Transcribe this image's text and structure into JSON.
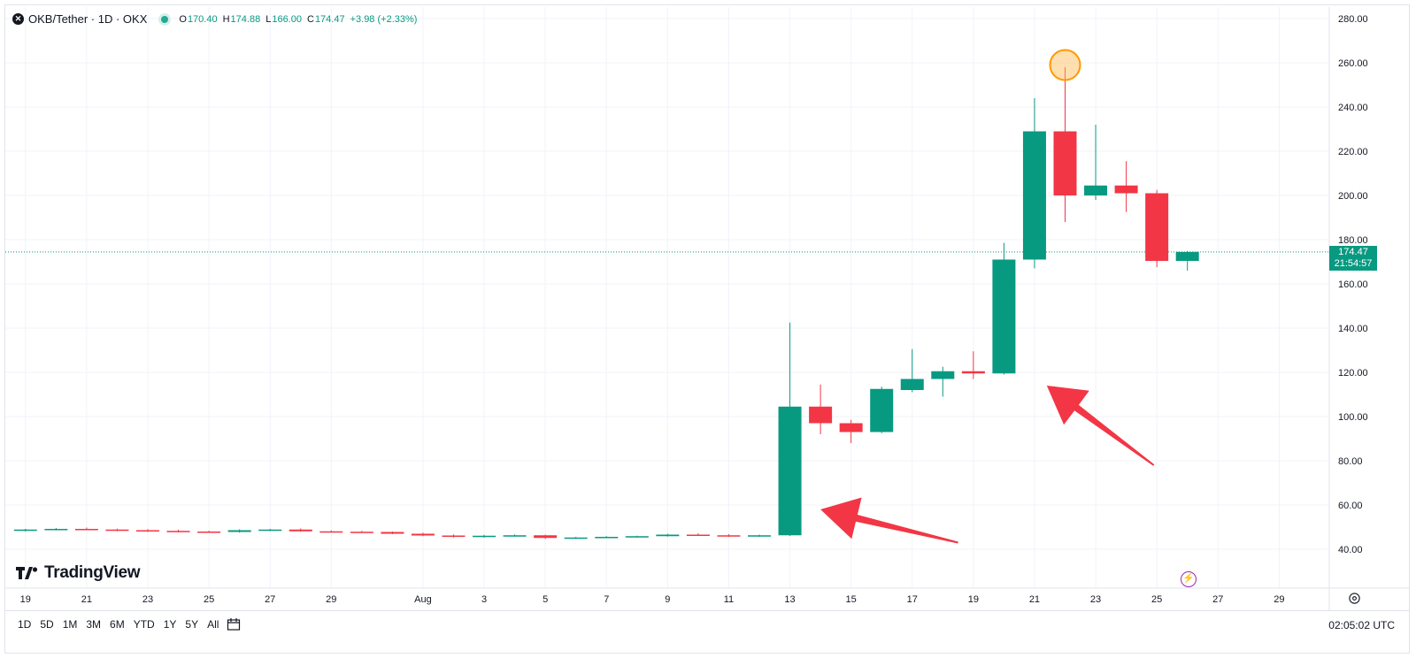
{
  "header": {
    "symbol": "OKB/Tether · 1D · OKX",
    "logo_icon": "okb-logo-icon",
    "ohlc": {
      "o_key": "O",
      "o": "170.40",
      "h_key": "H",
      "h": "174.88",
      "l_key": "L",
      "l": "166.00",
      "c_key": "C",
      "c": "174.47",
      "change": "+3.98 (+2.33%)"
    }
  },
  "brand": "TradingView",
  "price_label": {
    "price": "174.47",
    "countdown": "21:54:57"
  },
  "bottom_bar": {
    "ranges": [
      "1D",
      "5D",
      "1M",
      "3M",
      "6M",
      "YTD",
      "1Y",
      "5Y",
      "All"
    ],
    "time": "02:05:02 UTC"
  },
  "colors": {
    "up": "#089981",
    "down": "#f23645",
    "annotation": "#f23645",
    "highlight": "#ff9800"
  },
  "chart_data": {
    "type": "candlestick",
    "y_ticks": [
      "280.00",
      "260.00",
      "240.00",
      "220.00",
      "200.00",
      "180.00",
      "160.00",
      "140.00",
      "120.00",
      "100.00",
      "80.00",
      "60.00",
      "40.00"
    ],
    "ylim": [
      32,
      285
    ],
    "x_ticks": [
      {
        "label": "19",
        "day": 19
      },
      {
        "label": "21",
        "day": 21
      },
      {
        "label": "23",
        "day": 23
      },
      {
        "label": "25",
        "day": 25
      },
      {
        "label": "27",
        "day": 27
      },
      {
        "label": "29",
        "day": 29
      },
      {
        "label": "Aug",
        "day": 32
      },
      {
        "label": "3",
        "day": 34
      },
      {
        "label": "5",
        "day": 36
      },
      {
        "label": "7",
        "day": 38
      },
      {
        "label": "9",
        "day": 40
      },
      {
        "label": "11",
        "day": 42
      },
      {
        "label": "13",
        "day": 44
      },
      {
        "label": "15",
        "day": 46
      },
      {
        "label": "17",
        "day": 48
      },
      {
        "label": "19",
        "day": 50
      },
      {
        "label": "21",
        "day": 52
      },
      {
        "label": "23",
        "day": 54
      },
      {
        "label": "25",
        "day": 56
      },
      {
        "label": "27",
        "day": 58
      },
      {
        "label": "29",
        "day": 60
      }
    ],
    "candles": [
      {
        "d": 19,
        "o": 48.6,
        "h": 49.2,
        "l": 48.0,
        "c": 48.9
      },
      {
        "d": 20,
        "o": 48.9,
        "h": 49.6,
        "l": 48.5,
        "c": 49.2
      },
      {
        "d": 21,
        "o": 49.2,
        "h": 49.8,
        "l": 48.6,
        "c": 48.9
      },
      {
        "d": 22,
        "o": 48.9,
        "h": 49.3,
        "l": 48.2,
        "c": 48.6
      },
      {
        "d": 23,
        "o": 48.6,
        "h": 49.1,
        "l": 47.8,
        "c": 48.3
      },
      {
        "d": 24,
        "o": 48.3,
        "h": 48.8,
        "l": 47.6,
        "c": 48.0
      },
      {
        "d": 25,
        "o": 48.0,
        "h": 48.4,
        "l": 47.4,
        "c": 47.8
      },
      {
        "d": 26,
        "o": 47.8,
        "h": 49.0,
        "l": 47.5,
        "c": 48.6
      },
      {
        "d": 27,
        "o": 48.6,
        "h": 49.2,
        "l": 48.2,
        "c": 48.9
      },
      {
        "d": 28,
        "o": 48.9,
        "h": 49.4,
        "l": 47.9,
        "c": 48.1
      },
      {
        "d": 29,
        "o": 48.1,
        "h": 48.5,
        "l": 47.6,
        "c": 47.9
      },
      {
        "d": 30,
        "o": 47.9,
        "h": 48.3,
        "l": 47.5,
        "c": 47.8
      },
      {
        "d": 31,
        "o": 47.8,
        "h": 48.0,
        "l": 46.8,
        "c": 47.0
      },
      {
        "d": 32,
        "o": 47.0,
        "h": 47.5,
        "l": 45.9,
        "c": 46.2
      },
      {
        "d": 33,
        "o": 46.2,
        "h": 46.7,
        "l": 45.3,
        "c": 45.7
      },
      {
        "d": 34,
        "o": 45.7,
        "h": 46.5,
        "l": 45.2,
        "c": 46.1
      },
      {
        "d": 35,
        "o": 46.1,
        "h": 46.7,
        "l": 45.7,
        "c": 46.3
      },
      {
        "d": 36,
        "o": 46.3,
        "h": 46.6,
        "l": 44.6,
        "c": 45.1
      },
      {
        "d": 37,
        "o": 45.1,
        "h": 45.6,
        "l": 44.7,
        "c": 45.3
      },
      {
        "d": 38,
        "o": 45.3,
        "h": 45.9,
        "l": 45.0,
        "c": 45.6
      },
      {
        "d": 39,
        "o": 45.6,
        "h": 46.1,
        "l": 45.3,
        "c": 45.9
      },
      {
        "d": 40,
        "o": 45.9,
        "h": 47.0,
        "l": 45.7,
        "c": 46.6
      },
      {
        "d": 41,
        "o": 46.6,
        "h": 47.2,
        "l": 46.0,
        "c": 46.3
      },
      {
        "d": 42,
        "o": 46.3,
        "h": 46.8,
        "l": 45.6,
        "c": 45.9
      },
      {
        "d": 43,
        "o": 45.9,
        "h": 46.6,
        "l": 45.6,
        "c": 46.3
      },
      {
        "d": 44,
        "o": 46.3,
        "h": 142.5,
        "l": 46.0,
        "c": 104.5
      },
      {
        "d": 45,
        "o": 104.5,
        "h": 114.5,
        "l": 92.0,
        "c": 97.0
      },
      {
        "d": 46,
        "o": 97.0,
        "h": 98.5,
        "l": 88.0,
        "c": 93.0
      },
      {
        "d": 47,
        "o": 93.0,
        "h": 113.5,
        "l": 92.5,
        "c": 112.5
      },
      {
        "d": 48,
        "o": 112.0,
        "h": 130.5,
        "l": 111.0,
        "c": 117.0
      },
      {
        "d": 49,
        "o": 117.0,
        "h": 122.5,
        "l": 109.0,
        "c": 120.5
      },
      {
        "d": 50,
        "o": 120.5,
        "h": 129.5,
        "l": 117.0,
        "c": 119.5
      },
      {
        "d": 51,
        "o": 119.5,
        "h": 178.5,
        "l": 119.0,
        "c": 171.0
      },
      {
        "d": 52,
        "o": 171.0,
        "h": 244.0,
        "l": 167.0,
        "c": 229.0
      },
      {
        "d": 53,
        "o": 229.0,
        "h": 258.0,
        "l": 188.0,
        "c": 200.0
      },
      {
        "d": 54,
        "o": 200.0,
        "h": 232.0,
        "l": 198.0,
        "c": 204.5
      },
      {
        "d": 55,
        "o": 204.5,
        "h": 215.5,
        "l": 192.5,
        "c": 201.0
      },
      {
        "d": 56,
        "o": 201.0,
        "h": 202.5,
        "l": 167.5,
        "c": 170.4
      },
      {
        "d": 57,
        "o": 170.4,
        "h": 174.88,
        "l": 166.0,
        "c": 174.47
      }
    ],
    "last_price": 174.47,
    "highlight": {
      "d": 53,
      "y": 259
    },
    "arrows": [
      {
        "from": {
          "d": 49.5,
          "y": 43
        },
        "to": {
          "d": 45,
          "y": 58
        }
      },
      {
        "from": {
          "d": 55.9,
          "y": 78
        },
        "to": {
          "d": 52.4,
          "y": 114
        }
      }
    ]
  }
}
